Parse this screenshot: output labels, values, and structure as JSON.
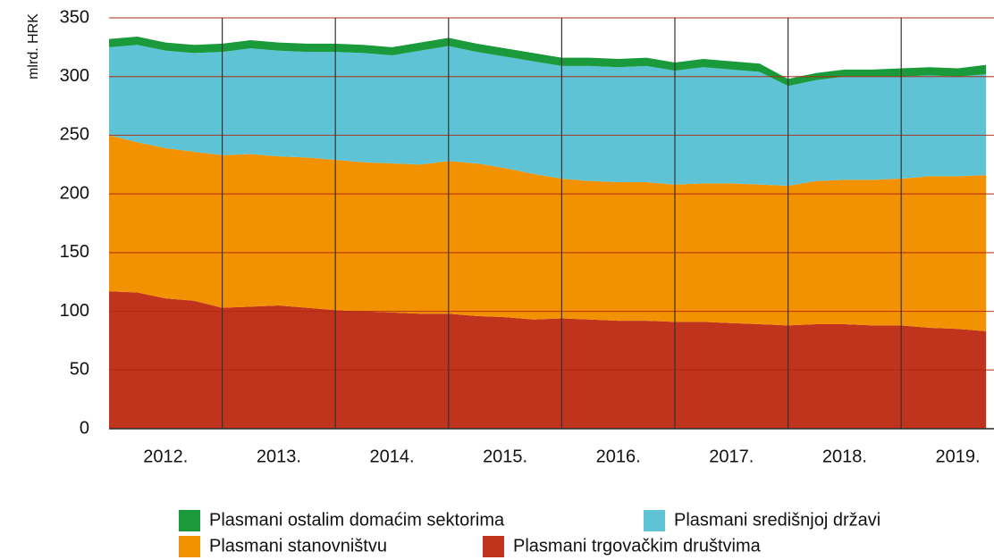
{
  "chart_data": {
    "type": "stacked-area",
    "ylabel": "mlrd. HRK",
    "x": [
      2012,
      2012.25,
      2012.5,
      2012.75,
      2013,
      2013.25,
      2013.5,
      2013.75,
      2014,
      2014.25,
      2014.5,
      2014.75,
      2015,
      2015.25,
      2015.5,
      2015.75,
      2016,
      2016.25,
      2016.5,
      2016.75,
      2017,
      2017.25,
      2017.5,
      2017.75,
      2018,
      2018.25,
      2018.5,
      2018.75,
      2019,
      2019.25,
      2019.5,
      2019.75
    ],
    "series": [
      {
        "name": "Plasmani trgovačkim društvima",
        "color": "#c0331c",
        "values": [
          117,
          116,
          111,
          109,
          103,
          104,
          105,
          103,
          101,
          100,
          99,
          98,
          98,
          96,
          95,
          93,
          94,
          93,
          92,
          92,
          91,
          91,
          90,
          89,
          88,
          89,
          89,
          88,
          88,
          86,
          85,
          83
        ]
      },
      {
        "name": "Plasmani stanovništvu",
        "color": "#f39200",
        "values": [
          133,
          128,
          128,
          127,
          130,
          130,
          127,
          128,
          128,
          127,
          127,
          127,
          130,
          130,
          127,
          124,
          119,
          118,
          118,
          118,
          117,
          118,
          119,
          119,
          119,
          122,
          123,
          124,
          125,
          129,
          130,
          133
        ]
      },
      {
        "name": "Plasmani središnjoj državi",
        "color": "#5fc3d6",
        "values": [
          75,
          83,
          83,
          84,
          88,
          90,
          90,
          90,
          92,
          93,
          92,
          97,
          98,
          95,
          95,
          96,
          96,
          98,
          98,
          99,
          97,
          99,
          97,
          96,
          85,
          86,
          88,
          88,
          87,
          86,
          85,
          86
        ]
      },
      {
        "name": "Plasmani ostalim domaćim sektorima",
        "color": "#1a9a3a",
        "values": [
          7,
          7,
          7,
          7,
          7,
          7,
          7,
          7,
          7,
          7,
          7,
          7,
          7,
          7,
          7,
          7,
          7,
          7,
          7,
          7,
          7,
          7,
          7,
          7,
          6,
          6,
          6,
          6,
          7,
          7,
          7,
          8
        ]
      }
    ],
    "xlim": [
      2012,
      2019.82
    ],
    "xticks": [
      {
        "value": 2012.5,
        "label": "2012."
      },
      {
        "value": 2013.5,
        "label": "2013."
      },
      {
        "value": 2014.5,
        "label": "2014."
      },
      {
        "value": 2015.5,
        "label": "2015."
      },
      {
        "value": 2016.5,
        "label": "2016."
      },
      {
        "value": 2017.5,
        "label": "2017."
      },
      {
        "value": 2018.5,
        "label": "2018."
      },
      {
        "value": 2019.5,
        "label": "2019."
      }
    ],
    "ylim": [
      0,
      350
    ],
    "yticks": [
      0,
      50,
      100,
      150,
      200,
      250,
      300,
      350
    ],
    "grid": true
  }
}
